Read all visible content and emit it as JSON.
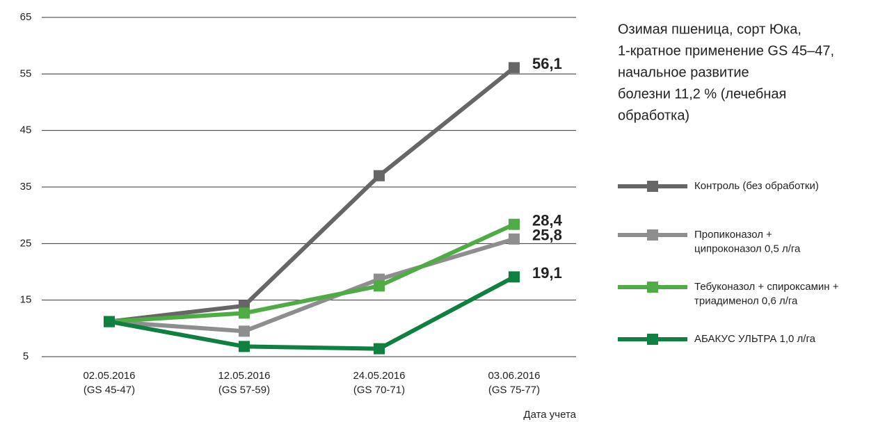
{
  "chart_data": {
    "type": "line",
    "categories": [
      "02.05.2016\n(GS 45-47)",
      "12.05.2016\n(GS 57-59)",
      "24.05.2016\n(GS 70-71)",
      "03.06.2016\n(GS 75-77)"
    ],
    "x_label": "Дата учета",
    "annotation": [
      "Озимая пшеница, сорт Юка,",
      "1-кратное применение GS 45–47,",
      "начальное развитие",
      "болезни 11,2 % (лечебная",
      "обработка)"
    ],
    "series": [
      {
        "name": "Контроль (без обработки)",
        "color": "#666666",
        "values": [
          11.2,
          14,
          37,
          56.1
        ],
        "value_labels": [
          null,
          null,
          null,
          "56,1"
        ]
      },
      {
        "name": "Пропиконазол +\nципроконазол 0,5 л/га",
        "color": "#8e8e8e",
        "values": [
          11.2,
          9.5,
          18.7,
          25.8
        ],
        "value_labels": [
          null,
          null,
          null,
          "25,8"
        ]
      },
      {
        "name": "Тебуконазол + спироксамин +\nтриадименол 0,6 л/га",
        "color": "#4fac45",
        "values": [
          11.2,
          12.7,
          17.5,
          28.4
        ],
        "value_labels": [
          null,
          null,
          null,
          "28,4"
        ]
      },
      {
        "name": "АБАКУС УЛЬТРА 1,0 л/га",
        "color": "#0f8040",
        "values": [
          11.2,
          6.8,
          6.4,
          19.1
        ],
        "value_labels": [
          null,
          null,
          null,
          "19,1"
        ]
      }
    ],
    "ylim": [
      5,
      65
    ],
    "yticks": [
      5,
      15,
      25,
      35,
      45,
      55,
      65
    ],
    "grid": true
  }
}
